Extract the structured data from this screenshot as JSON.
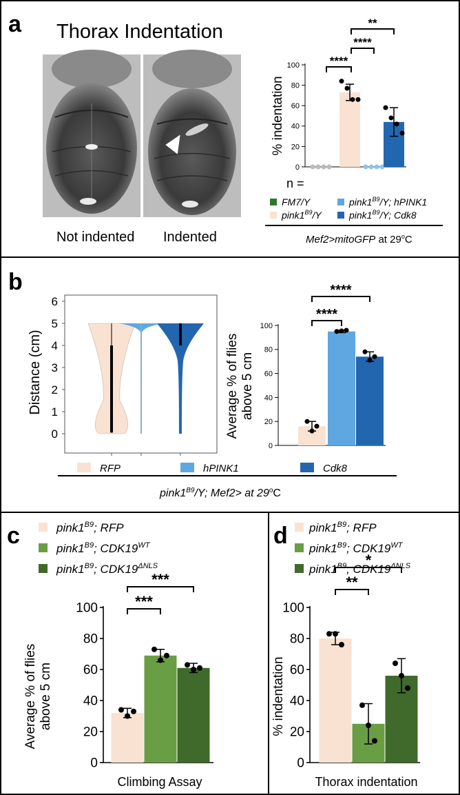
{
  "panel_a": {
    "letter": "a",
    "title": "Thorax Indentation",
    "image_labels": [
      "Not indented",
      "Indented"
    ],
    "n_label": "n =",
    "legend": [
      {
        "pre": "FM7/Y",
        "sup": "",
        "post": "",
        "color": "#2b7a2b"
      },
      {
        "pre": "pink1",
        "sup": "B9",
        "post": "/Y; hPINK1",
        "color": "#5fa7e0"
      },
      {
        "pre": "pink1",
        "sup": "B9",
        "post": "/Y",
        "color": "#f9e2d2"
      },
      {
        "pre": "pink1",
        "sup": "B9",
        "post": "/Y; Cdk8",
        "color": "#2366b0"
      }
    ],
    "condition": {
      "pre": "Mef2>mitoGFP",
      "mid": " at 29",
      "deg": "o",
      "post": "C"
    },
    "significance": [
      "****",
      "****",
      "**"
    ]
  },
  "panel_b": {
    "letter": "b",
    "legend": [
      {
        "label": "RFP",
        "color": "#f9e2d2"
      },
      {
        "label": "hPINK1",
        "color": "#5fa7e0"
      },
      {
        "label": "Cdk8",
        "color": "#2366b0"
      }
    ],
    "condition": {
      "pre": "pink1",
      "sup": "B9",
      "post": "/Y; Mef2> at 29",
      "deg": "o",
      "end": "C"
    },
    "significance": [
      "****",
      "****"
    ]
  },
  "panel_c": {
    "letter": "c",
    "legend": [
      {
        "pre": "pink1",
        "sup": "B9",
        "post": "; RFP",
        "color": "#f9e2d2"
      },
      {
        "pre": "pink1",
        "sup": "B9",
        "post": "; CDK19",
        "sup2": "WT",
        "color": "#6a9e45"
      },
      {
        "pre": "pink1",
        "sup": "B9",
        "post": "; CDK19",
        "sup2": "ΔNLS",
        "color": "#3f6a2b"
      }
    ],
    "significance": [
      "***",
      "***"
    ]
  },
  "panel_d": {
    "letter": "d",
    "legend": [
      {
        "pre": "pink1",
        "sup": "B9",
        "post": "; RFP",
        "color": "#f9e2d2"
      },
      {
        "pre": "pink1",
        "sup": "B9",
        "post": "; CDK19",
        "sup2": "WT",
        "color": "#6a9e45"
      },
      {
        "pre": "pink1",
        "sup": "B9",
        "post": "; CDK19",
        "sup2": "ΔNLS",
        "color": "#3f6a2b"
      }
    ],
    "significance": [
      "**",
      "*"
    ]
  },
  "chart_data": [
    {
      "id": "a",
      "type": "bar",
      "ylabel": "% indentation",
      "ylim": [
        0,
        100
      ],
      "yticks": [
        0,
        20,
        40,
        60,
        80,
        100
      ],
      "categories": [
        "FM7/Y",
        "pink1B9/Y",
        "pink1B9/Y; hPINK1",
        "pink1B9/Y; Cdk8"
      ],
      "values": [
        0,
        73,
        0,
        44
      ],
      "errors": [
        0,
        8,
        0,
        14
      ],
      "points": [
        [
          0,
          0,
          0,
          0
        ],
        [
          84,
          77,
          66,
          66
        ],
        [
          0,
          0,
          0,
          0
        ],
        [
          58,
          48,
          42,
          33
        ]
      ],
      "colors": [
        "#2b7a2b",
        "#f9e2d2",
        "#5fa7e0",
        "#2366b0"
      ],
      "zero_point_colors": [
        "#bbbbbb",
        "#000000",
        "#8ec3ee",
        "#000000"
      ]
    },
    {
      "id": "b_violin",
      "type": "violin",
      "ylabel": "Distance (cm)",
      "ylim": [
        0,
        6
      ],
      "yticks": [
        0,
        1,
        2,
        3,
        4,
        5,
        6
      ],
      "categories": [
        "RFP",
        "hPINK1",
        "Cdk8"
      ],
      "medians": [
        4,
        5,
        4.5
      ],
      "iqr": [
        [
          0,
          4
        ],
        [
          5,
          5
        ],
        [
          4,
          5
        ]
      ],
      "colors": [
        "#f9e2d2",
        "#5fa7e0",
        "#2366b0"
      ]
    },
    {
      "id": "b_bar",
      "type": "bar",
      "ylabel": "Average % of flies above 5 cm",
      "ylim": [
        0,
        100
      ],
      "yticks": [
        0,
        20,
        40,
        60,
        80,
        100
      ],
      "categories": [
        "RFP",
        "hPINK1",
        "Cdk8"
      ],
      "values": [
        16,
        95,
        74
      ],
      "errors": [
        4,
        1,
        4
      ],
      "points": [
        [
          20,
          12,
          16
        ],
        [
          95,
          95.5,
          96
        ],
        [
          78,
          71,
          74
        ]
      ],
      "colors": [
        "#f9e2d2",
        "#5fa7e0",
        "#2366b0"
      ]
    },
    {
      "id": "c",
      "type": "bar",
      "xlabel": "Climbing Assay",
      "ylabel": "Average % of flies above 5 cm",
      "ylim": [
        0,
        100
      ],
      "yticks": [
        0,
        20,
        40,
        60,
        80,
        100
      ],
      "categories": [
        "pink1B9; RFP",
        "pink1B9; CDK19WT",
        "pink1B9; CDK19ΔNLS"
      ],
      "values": [
        32,
        69,
        61
      ],
      "errors": [
        3,
        4,
        3
      ],
      "points": [
        [
          34,
          30,
          33
        ],
        [
          73,
          66,
          69
        ],
        [
          63,
          60,
          61
        ]
      ],
      "colors": [
        "#f9e2d2",
        "#6a9e45",
        "#3f6a2b"
      ]
    },
    {
      "id": "d",
      "type": "bar",
      "xlabel": "Thorax indentation",
      "ylabel": "% indentation",
      "ylim": [
        0,
        100
      ],
      "yticks": [
        0,
        20,
        40,
        60,
        80,
        100
      ],
      "categories": [
        "pink1B9; RFP",
        "pink1B9; CDK19WT",
        "pink1B9; CDK19ΔNLS"
      ],
      "values": [
        80,
        25,
        56
      ],
      "errors": [
        4,
        13,
        11
      ],
      "points": [
        [
          83,
          83,
          76
        ],
        [
          37,
          24,
          14
        ],
        [
          64,
          56,
          48
        ]
      ],
      "colors": [
        "#f9e2d2",
        "#6a9e45",
        "#3f6a2b"
      ]
    }
  ]
}
